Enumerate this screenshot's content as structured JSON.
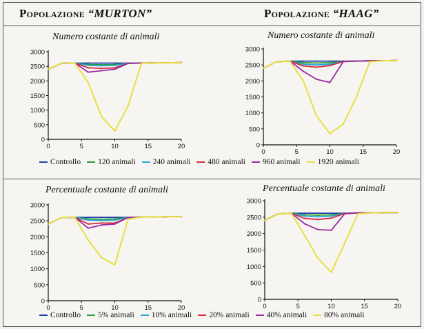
{
  "header": {
    "left": {
      "prefix": "Popolazione ",
      "name": "“MURTON”"
    },
    "right": {
      "prefix": "Popolazione ",
      "name": "“HAAG”"
    }
  },
  "legends": {
    "top": [
      "Controllo",
      "120 animali",
      "240 animali",
      "480 animali",
      "960 animali",
      "1920 animali"
    ],
    "bottom": [
      "Controllo",
      "5% animali",
      "10% animali",
      "20% animali",
      "40% animali",
      "80% animali"
    ]
  },
  "colors": {
    "series": [
      "#1f3fa8",
      "#2a9a3a",
      "#2aa8d8",
      "#d42a3a",
      "#9a2aa0",
      "#e6e040"
    ]
  },
  "chart_data": [
    {
      "type": "line",
      "title": "Numero costante di animali",
      "xlim": [
        0,
        20
      ],
      "ylim": [
        0,
        3000
      ],
      "xticks": [
        0,
        5,
        10,
        15,
        20
      ],
      "yticks": [
        0,
        500,
        1000,
        1500,
        2000,
        2500,
        3000
      ],
      "x": [
        0,
        2,
        4,
        6,
        8,
        10,
        12,
        14,
        16,
        18,
        20
      ],
      "series": [
        {
          "name": "Controllo",
          "values": [
            2400,
            2600,
            2610,
            2610,
            2610,
            2610,
            2610,
            2610,
            2620,
            2620,
            2630
          ]
        },
        {
          "name": "120 animali",
          "values": [
            2400,
            2600,
            2610,
            2560,
            2550,
            2560,
            2600,
            2610,
            2620,
            2620,
            2630
          ]
        },
        {
          "name": "240 animali",
          "values": [
            2400,
            2600,
            2610,
            2530,
            2520,
            2530,
            2600,
            2610,
            2620,
            2620,
            2630
          ]
        },
        {
          "name": "480 animali",
          "values": [
            2400,
            2600,
            2610,
            2450,
            2430,
            2450,
            2600,
            2610,
            2620,
            2620,
            2630
          ]
        },
        {
          "name": "960 animali",
          "values": [
            2400,
            2600,
            2610,
            2300,
            2350,
            2400,
            2600,
            2610,
            2620,
            2620,
            2630
          ]
        },
        {
          "name": "1920 animali",
          "values": [
            2400,
            2600,
            2610,
            1950,
            780,
            280,
            1150,
            2600,
            2620,
            2620,
            2630
          ]
        }
      ]
    },
    {
      "type": "line",
      "title": "Numero costante di animali",
      "xlim": [
        0,
        20
      ],
      "ylim": [
        0,
        3000
      ],
      "xticks": [
        0,
        5,
        10,
        15,
        20
      ],
      "yticks": [
        0,
        500,
        1000,
        1500,
        2000,
        2500,
        3000
      ],
      "x": [
        0,
        2,
        4,
        6,
        8,
        10,
        12,
        14,
        16,
        18,
        20
      ],
      "series": [
        {
          "name": "Controllo",
          "values": [
            2400,
            2600,
            2620,
            2620,
            2620,
            2620,
            2620,
            2620,
            2630,
            2630,
            2640
          ]
        },
        {
          "name": "120 animali",
          "values": [
            2400,
            2600,
            2620,
            2570,
            2560,
            2570,
            2610,
            2620,
            2630,
            2630,
            2640
          ]
        },
        {
          "name": "240 animali",
          "values": [
            2400,
            2600,
            2620,
            2520,
            2500,
            2520,
            2610,
            2620,
            2630,
            2630,
            2640
          ]
        },
        {
          "name": "480 animali",
          "values": [
            2400,
            2600,
            2620,
            2470,
            2430,
            2480,
            2610,
            2620,
            2630,
            2630,
            2640
          ]
        },
        {
          "name": "960 animali",
          "values": [
            2400,
            2600,
            2620,
            2300,
            2050,
            1950,
            2600,
            2620,
            2630,
            2630,
            2640
          ]
        },
        {
          "name": "1920 animali",
          "values": [
            2400,
            2600,
            2620,
            2000,
            900,
            350,
            650,
            1500,
            2600,
            2630,
            2640
          ]
        }
      ]
    },
    {
      "type": "line",
      "title": "Percentuale costante di animali",
      "xlim": [
        0,
        20
      ],
      "ylim": [
        0,
        3000
      ],
      "xticks": [
        0,
        5,
        10,
        15,
        20
      ],
      "yticks": [
        0,
        500,
        1000,
        1500,
        2000,
        2500,
        3000
      ],
      "x": [
        0,
        2,
        4,
        6,
        8,
        10,
        12,
        14,
        16,
        18,
        20
      ],
      "series": [
        {
          "name": "Controllo",
          "values": [
            2400,
            2600,
            2610,
            2610,
            2610,
            2610,
            2610,
            2620,
            2620,
            2630,
            2630
          ]
        },
        {
          "name": "5% animali",
          "values": [
            2400,
            2600,
            2610,
            2560,
            2550,
            2560,
            2600,
            2620,
            2620,
            2630,
            2630
          ]
        },
        {
          "name": "10% animali",
          "values": [
            2400,
            2600,
            2610,
            2520,
            2510,
            2520,
            2600,
            2620,
            2620,
            2630,
            2630
          ]
        },
        {
          "name": "20% animali",
          "values": [
            2400,
            2600,
            2610,
            2400,
            2430,
            2430,
            2600,
            2620,
            2620,
            2630,
            2630
          ]
        },
        {
          "name": "40% animali",
          "values": [
            2400,
            2600,
            2610,
            2270,
            2370,
            2400,
            2600,
            2620,
            2620,
            2630,
            2630
          ]
        },
        {
          "name": "80% animali",
          "values": [
            2400,
            2600,
            2610,
            1900,
            1350,
            1120,
            2550,
            2620,
            2620,
            2630,
            2630
          ]
        }
      ]
    },
    {
      "type": "line",
      "title": "Percentuale costante di animali",
      "xlim": [
        0,
        20
      ],
      "ylim": [
        0,
        3000
      ],
      "xticks": [
        0,
        5,
        10,
        15,
        20
      ],
      "yticks": [
        0,
        500,
        1000,
        1500,
        2000,
        2500,
        3000
      ],
      "x": [
        0,
        2,
        4,
        6,
        8,
        10,
        12,
        14,
        16,
        18,
        20
      ],
      "series": [
        {
          "name": "Controllo",
          "values": [
            2400,
            2600,
            2620,
            2620,
            2620,
            2620,
            2620,
            2630,
            2630,
            2640,
            2640
          ]
        },
        {
          "name": "5% animali",
          "values": [
            2400,
            2600,
            2620,
            2570,
            2560,
            2570,
            2610,
            2630,
            2630,
            2640,
            2640
          ]
        },
        {
          "name": "10% animali",
          "values": [
            2400,
            2600,
            2620,
            2530,
            2510,
            2530,
            2610,
            2630,
            2630,
            2640,
            2640
          ]
        },
        {
          "name": "20% animali",
          "values": [
            2400,
            2600,
            2620,
            2460,
            2430,
            2470,
            2610,
            2630,
            2630,
            2640,
            2640
          ]
        },
        {
          "name": "40% animali",
          "values": [
            2400,
            2600,
            2620,
            2300,
            2120,
            2100,
            2600,
            2630,
            2630,
            2640,
            2640
          ]
        },
        {
          "name": "80% animali",
          "values": [
            2400,
            2600,
            2620,
            1950,
            1250,
            820,
            1700,
            2600,
            2630,
            2640,
            2640
          ]
        }
      ]
    }
  ]
}
